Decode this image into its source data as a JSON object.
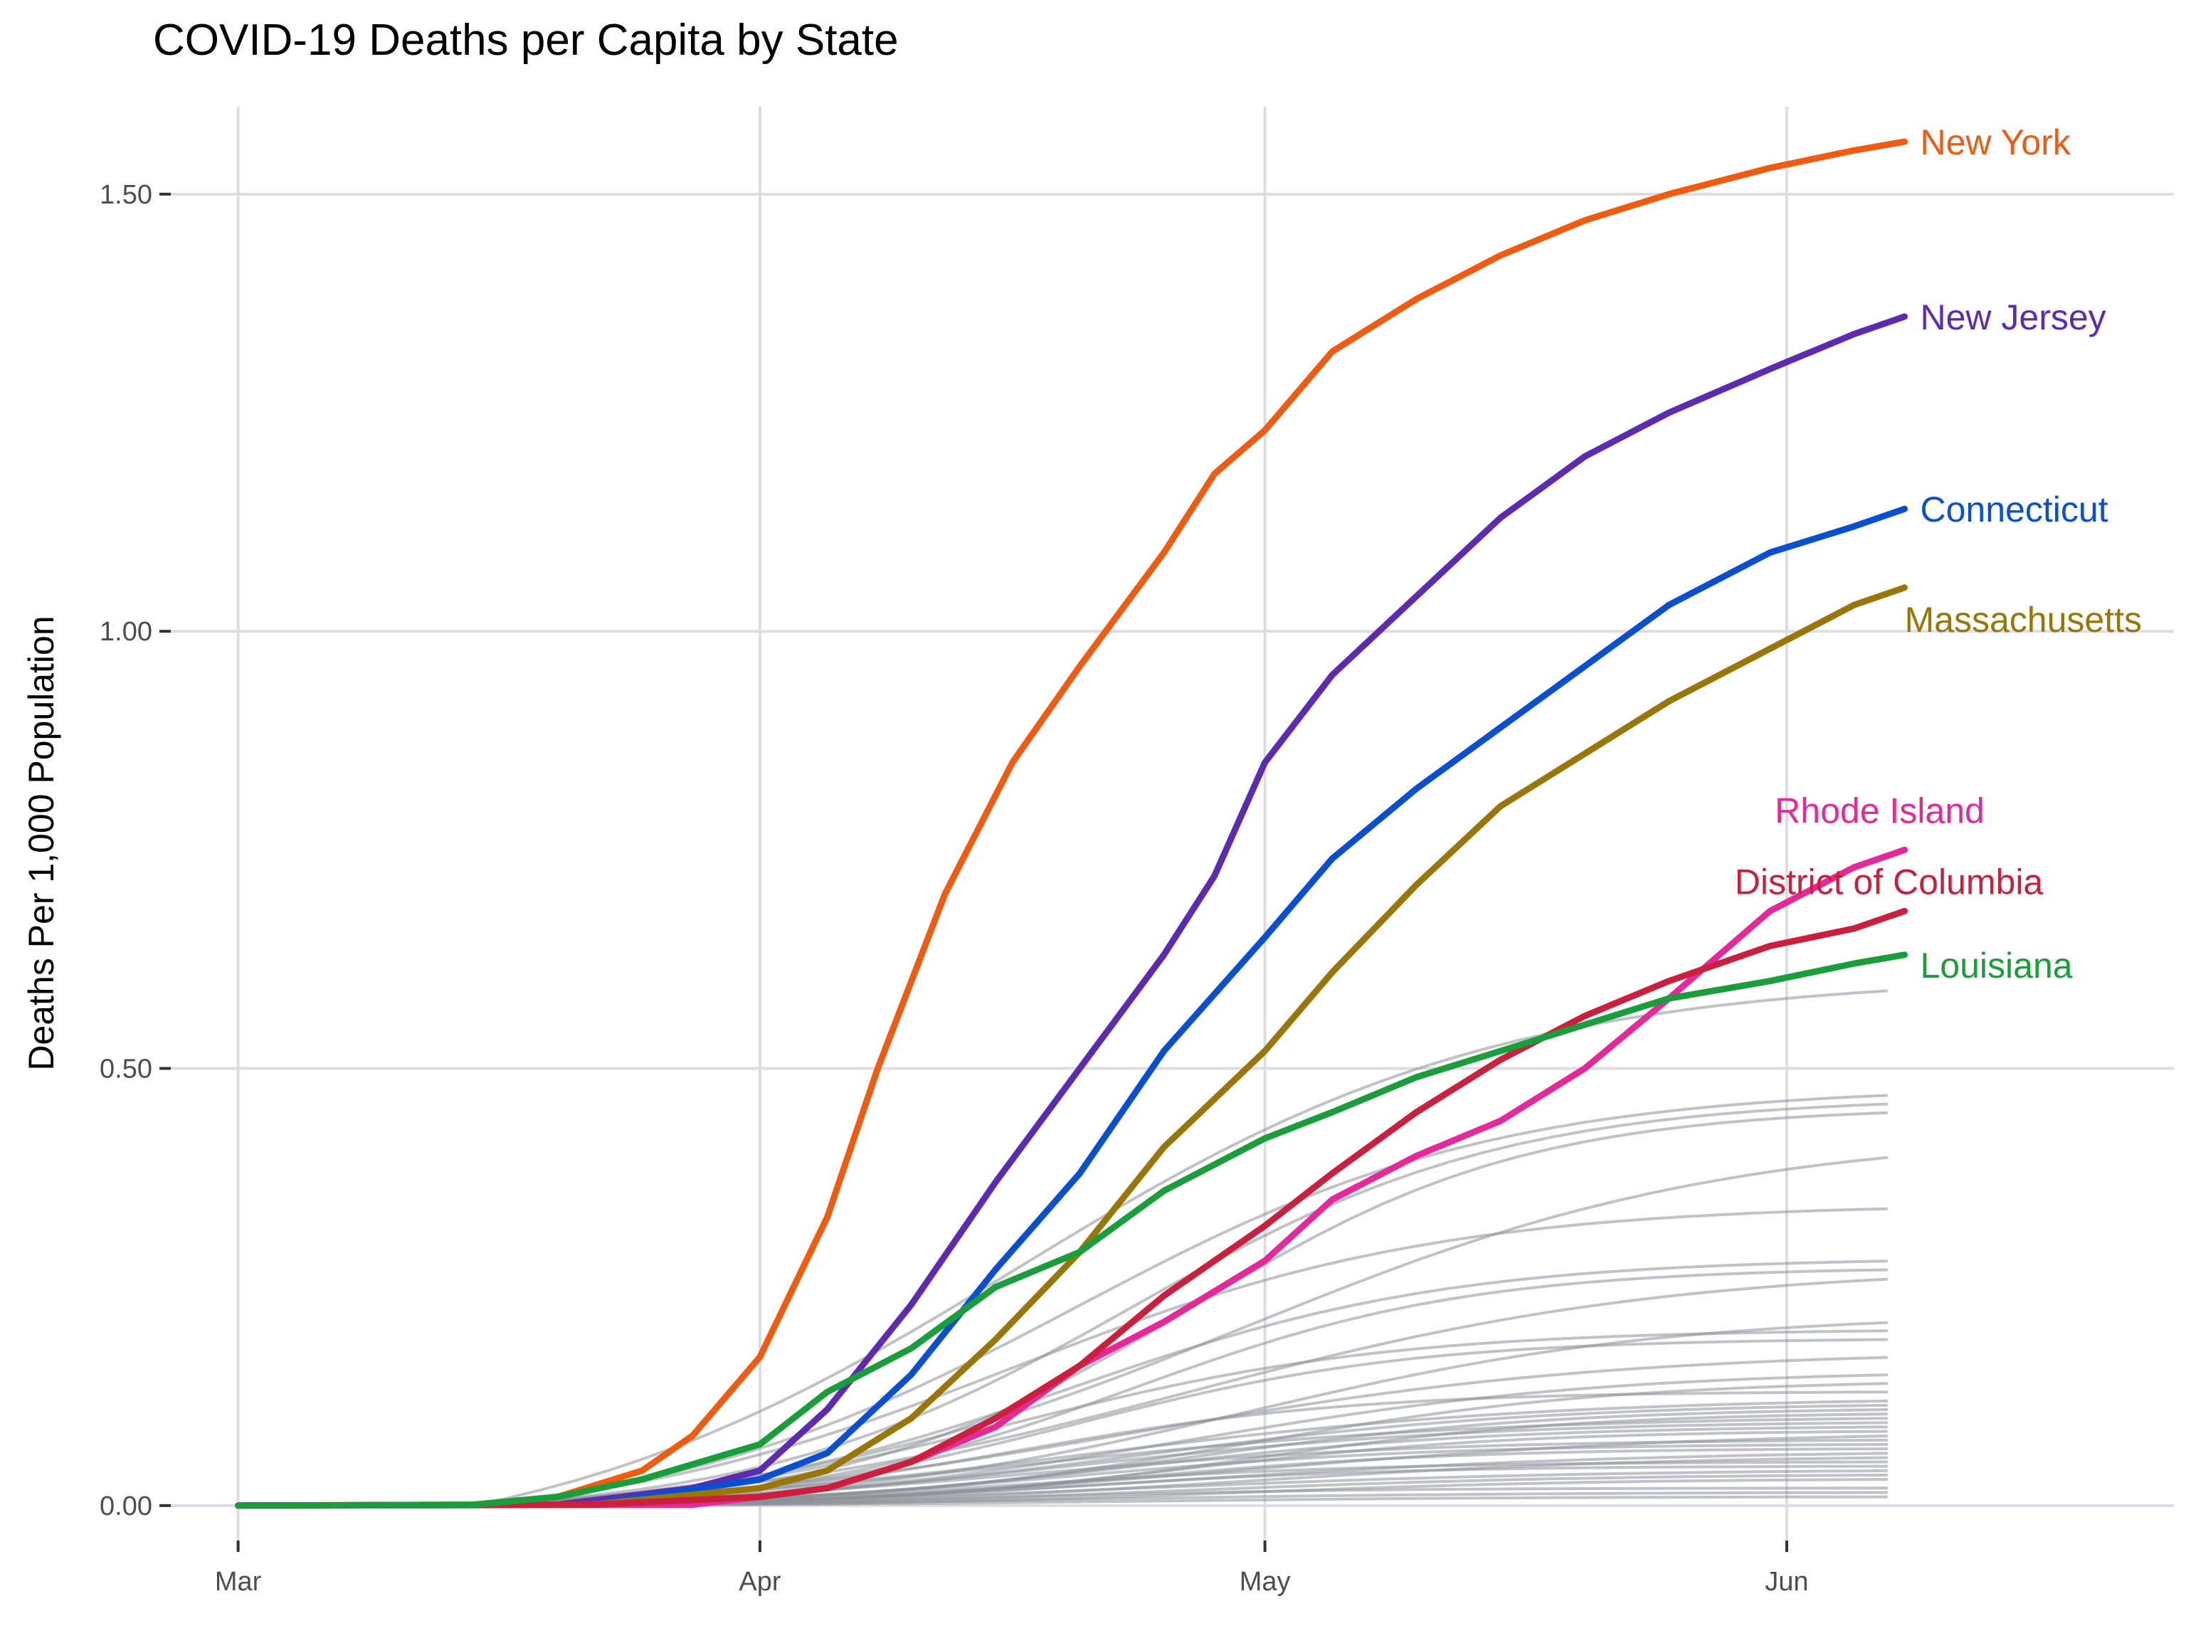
{
  "chart_data": {
    "type": "line",
    "title": "COVID-19 Deaths per Capita by State",
    "xlabel": "",
    "ylabel": "Deaths Per 1,000 Population",
    "x_ticks": [
      "Mar",
      "Apr",
      "May",
      "Jun"
    ],
    "x_tick_dates": [
      "2020-03-01",
      "2020-04-01",
      "2020-05-01",
      "2020-06-01"
    ],
    "xlim": [
      "2020-02-26",
      "2020-06-24"
    ],
    "y_ticks": [
      "0.00",
      "0.50",
      "1.00",
      "1.50"
    ],
    "ylim": [
      -0.04,
      1.6
    ],
    "grid": true,
    "legend": "none (series labeled directly at line ends)",
    "highlight_series": [
      {
        "name": "New York",
        "color": "#f25a0f",
        "points": [
          [
            "2020-03-01",
            0
          ],
          [
            "2020-03-15",
            0.001
          ],
          [
            "2020-03-20",
            0.01
          ],
          [
            "2020-03-25",
            0.04
          ],
          [
            "2020-03-28",
            0.08
          ],
          [
            "2020-04-01",
            0.17
          ],
          [
            "2020-04-05",
            0.33
          ],
          [
            "2020-04-08",
            0.5
          ],
          [
            "2020-04-12",
            0.7
          ],
          [
            "2020-04-16",
            0.85
          ],
          [
            "2020-04-20",
            0.96
          ],
          [
            "2020-04-25",
            1.09
          ],
          [
            "2020-04-28",
            1.18
          ],
          [
            "2020-05-01",
            1.23
          ],
          [
            "2020-05-05",
            1.32
          ],
          [
            "2020-05-10",
            1.38
          ],
          [
            "2020-05-15",
            1.43
          ],
          [
            "2020-05-20",
            1.47
          ],
          [
            "2020-05-25",
            1.5
          ],
          [
            "2020-05-31",
            1.53
          ],
          [
            "2020-06-05",
            1.55
          ],
          [
            "2020-06-08",
            1.56
          ]
        ]
      },
      {
        "name": "New Jersey",
        "color": "#5e2ab1",
        "points": [
          [
            "2020-03-01",
            0
          ],
          [
            "2020-03-20",
            0.001
          ],
          [
            "2020-03-28",
            0.02
          ],
          [
            "2020-04-01",
            0.04
          ],
          [
            "2020-04-05",
            0.11
          ],
          [
            "2020-04-10",
            0.23
          ],
          [
            "2020-04-15",
            0.37
          ],
          [
            "2020-04-20",
            0.5
          ],
          [
            "2020-04-25",
            0.63
          ],
          [
            "2020-04-28",
            0.72
          ],
          [
            "2020-05-01",
            0.85
          ],
          [
            "2020-05-05",
            0.95
          ],
          [
            "2020-05-10",
            1.04
          ],
          [
            "2020-05-15",
            1.13
          ],
          [
            "2020-05-20",
            1.2
          ],
          [
            "2020-05-25",
            1.25
          ],
          [
            "2020-05-31",
            1.3
          ],
          [
            "2020-06-05",
            1.34
          ],
          [
            "2020-06-08",
            1.36
          ]
        ]
      },
      {
        "name": "Connecticut",
        "color": "#0a4fd1",
        "points": [
          [
            "2020-03-01",
            0
          ],
          [
            "2020-03-22",
            0.001
          ],
          [
            "2020-04-01",
            0.03
          ],
          [
            "2020-04-05",
            0.06
          ],
          [
            "2020-04-10",
            0.15
          ],
          [
            "2020-04-15",
            0.27
          ],
          [
            "2020-04-20",
            0.38
          ],
          [
            "2020-04-25",
            0.52
          ],
          [
            "2020-05-01",
            0.65
          ],
          [
            "2020-05-05",
            0.74
          ],
          [
            "2020-05-10",
            0.82
          ],
          [
            "2020-05-15",
            0.89
          ],
          [
            "2020-05-20",
            0.96
          ],
          [
            "2020-05-25",
            1.03
          ],
          [
            "2020-05-31",
            1.09
          ],
          [
            "2020-06-05",
            1.12
          ],
          [
            "2020-06-08",
            1.14
          ]
        ]
      },
      {
        "name": "Massachusetts",
        "color": "#9a7608",
        "points": [
          [
            "2020-03-01",
            0
          ],
          [
            "2020-03-22",
            0.001
          ],
          [
            "2020-04-01",
            0.02
          ],
          [
            "2020-04-05",
            0.04
          ],
          [
            "2020-04-10",
            0.1
          ],
          [
            "2020-04-15",
            0.19
          ],
          [
            "2020-04-20",
            0.29
          ],
          [
            "2020-04-25",
            0.41
          ],
          [
            "2020-05-01",
            0.52
          ],
          [
            "2020-05-05",
            0.61
          ],
          [
            "2020-05-10",
            0.71
          ],
          [
            "2020-05-15",
            0.8
          ],
          [
            "2020-05-20",
            0.86
          ],
          [
            "2020-05-25",
            0.92
          ],
          [
            "2020-05-31",
            0.98
          ],
          [
            "2020-06-05",
            1.03
          ],
          [
            "2020-06-08",
            1.05
          ]
        ]
      },
      {
        "name": "Rhode Island",
        "color": "#e6289a",
        "points": [
          [
            "2020-03-01",
            0
          ],
          [
            "2020-03-28",
            0.001
          ],
          [
            "2020-04-01",
            0.01
          ],
          [
            "2020-04-05",
            0.02
          ],
          [
            "2020-04-10",
            0.05
          ],
          [
            "2020-04-15",
            0.09
          ],
          [
            "2020-04-20",
            0.16
          ],
          [
            "2020-04-25",
            0.21
          ],
          [
            "2020-05-01",
            0.28
          ],
          [
            "2020-05-05",
            0.35
          ],
          [
            "2020-05-10",
            0.4
          ],
          [
            "2020-05-15",
            0.44
          ],
          [
            "2020-05-20",
            0.5
          ],
          [
            "2020-05-25",
            0.58
          ],
          [
            "2020-05-31",
            0.68
          ],
          [
            "2020-06-05",
            0.73
          ],
          [
            "2020-06-08",
            0.75
          ]
        ]
      },
      {
        "name": "District of Columbia",
        "color": "#cc1f3e",
        "points": [
          [
            "2020-03-01",
            0
          ],
          [
            "2020-03-22",
            0.001
          ],
          [
            "2020-04-01",
            0.01
          ],
          [
            "2020-04-05",
            0.02
          ],
          [
            "2020-04-10",
            0.05
          ],
          [
            "2020-04-15",
            0.1
          ],
          [
            "2020-04-20",
            0.16
          ],
          [
            "2020-04-25",
            0.24
          ],
          [
            "2020-05-01",
            0.32
          ],
          [
            "2020-05-05",
            0.38
          ],
          [
            "2020-05-10",
            0.45
          ],
          [
            "2020-05-15",
            0.51
          ],
          [
            "2020-05-20",
            0.56
          ],
          [
            "2020-05-25",
            0.6
          ],
          [
            "2020-05-31",
            0.64
          ],
          [
            "2020-06-05",
            0.66
          ],
          [
            "2020-06-08",
            0.68
          ]
        ]
      },
      {
        "name": "Louisiana",
        "color": "#1a9e3c",
        "points": [
          [
            "2020-03-01",
            0
          ],
          [
            "2020-03-15",
            0.001
          ],
          [
            "2020-03-20",
            0.01
          ],
          [
            "2020-03-25",
            0.03
          ],
          [
            "2020-04-01",
            0.07
          ],
          [
            "2020-04-05",
            0.13
          ],
          [
            "2020-04-10",
            0.18
          ],
          [
            "2020-04-15",
            0.25
          ],
          [
            "2020-04-20",
            0.29
          ],
          [
            "2020-04-25",
            0.36
          ],
          [
            "2020-05-01",
            0.42
          ],
          [
            "2020-05-05",
            0.45
          ],
          [
            "2020-05-10",
            0.49
          ],
          [
            "2020-05-15",
            0.52
          ],
          [
            "2020-05-20",
            0.55
          ],
          [
            "2020-05-25",
            0.58
          ],
          [
            "2020-05-31",
            0.6
          ],
          [
            "2020-06-05",
            0.62
          ],
          [
            "2020-06-08",
            0.63
          ]
        ]
      }
    ],
    "background_series": {
      "color": "#8a9199",
      "start_date": "2020-03-15",
      "end_date": "2020-06-08",
      "final_values": [
        0.59,
        0.47,
        0.46,
        0.45,
        0.4,
        0.34,
        0.28,
        0.27,
        0.26,
        0.21,
        0.2,
        0.19,
        0.17,
        0.15,
        0.14,
        0.13,
        0.12,
        0.115,
        0.11,
        0.105,
        0.1,
        0.095,
        0.09,
        0.085,
        0.08,
        0.075,
        0.07,
        0.065,
        0.06,
        0.055,
        0.05,
        0.045,
        0.04,
        0.035,
        0.03,
        0.02,
        0.015,
        0.01
      ]
    }
  }
}
